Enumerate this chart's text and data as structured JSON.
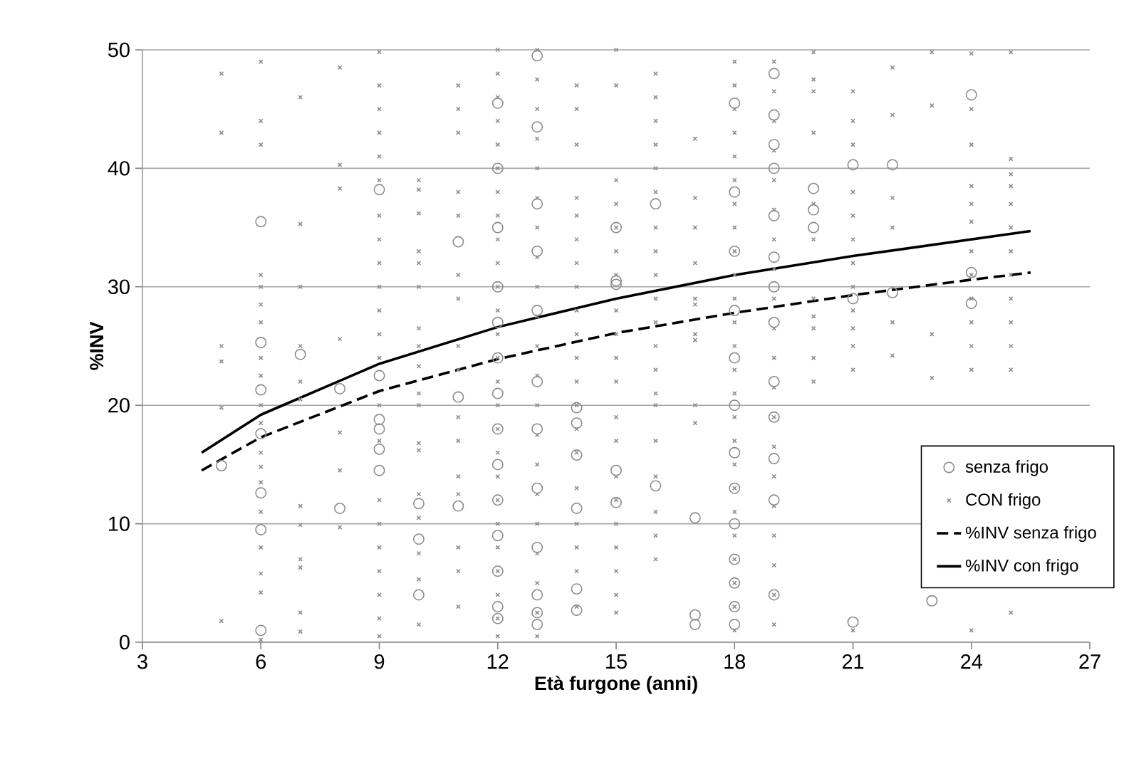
{
  "chart_data": {
    "type": "scatter",
    "xlabel": "Età furgone (anni)",
    "ylabel": "%INV",
    "xlim": [
      3,
      27
    ],
    "ylim": [
      0,
      50
    ],
    "xticks": [
      3,
      6,
      9,
      12,
      15,
      18,
      21,
      24,
      27
    ],
    "yticks": [
      0,
      10,
      20,
      30,
      40,
      50
    ],
    "grid": "y",
    "legend": "bottom right",
    "series": [
      {
        "name": "senza frigo",
        "marker": "circle",
        "color": "#8c8c8c",
        "x": [
          5,
          6,
          6,
          6,
          6,
          6,
          6,
          6,
          7,
          8,
          8,
          9,
          9,
          9,
          9,
          9,
          9,
          10,
          10,
          10,
          11,
          11,
          11,
          12,
          12,
          12,
          12,
          12,
          12,
          12,
          12,
          12,
          12,
          12,
          12,
          12,
          12,
          13,
          13,
          13,
          13,
          13,
          13,
          13,
          13,
          13,
          13,
          13,
          13,
          14,
          14,
          14,
          14,
          14,
          14,
          15,
          15,
          15,
          15,
          15,
          16,
          16,
          17,
          17,
          17,
          18,
          18,
          18,
          18,
          18,
          18,
          18,
          18,
          18,
          18,
          18,
          18,
          18,
          19,
          19,
          19,
          19,
          19,
          19,
          19,
          19,
          19,
          19,
          19,
          19,
          19,
          20,
          20,
          20,
          21,
          21,
          21,
          22,
          22,
          23,
          24,
          24,
          24
        ],
        "values": [
          14.9,
          35.5,
          25.3,
          21.3,
          17.6,
          12.6,
          9.5,
          1.0,
          24.3,
          21.4,
          11.3,
          38.2,
          22.5,
          18.8,
          18,
          16.3,
          14.5,
          11.7,
          8.7,
          4.0,
          33.8,
          20.7,
          11.5,
          45.5,
          40,
          35,
          30,
          27,
          24,
          21,
          18,
          15,
          12,
          9,
          6,
          3,
          2,
          49.5,
          43.5,
          37,
          33,
          28,
          22,
          18,
          13,
          8,
          4,
          2.5,
          1.5,
          19.8,
          18.5,
          15.8,
          11.3,
          4.5,
          2.7,
          35,
          30.5,
          30.2,
          14.5,
          11.8,
          37,
          13.2,
          10.5,
          2.3,
          1.5,
          45.5,
          38,
          33,
          28,
          24,
          20,
          16,
          13,
          10,
          7,
          5,
          3,
          1.5,
          48,
          44.5,
          42,
          40,
          36,
          32.5,
          30,
          27,
          22,
          19,
          15.5,
          12,
          4,
          38.3,
          36.5,
          35,
          40.3,
          29,
          1.7,
          40.3,
          29.5,
          3.5,
          46.2,
          31.2,
          28.6
        ]
      },
      {
        "name": "CON frigo",
        "marker": "cross",
        "color": "#8c8c8c",
        "x": [
          5,
          5,
          5,
          5,
          5,
          5,
          6,
          6,
          6,
          6,
          6,
          6,
          6,
          6,
          6,
          6,
          6,
          6,
          6,
          6,
          6,
          6,
          6,
          6,
          6,
          7,
          7,
          7,
          7,
          7,
          7,
          7,
          7,
          7,
          7,
          7,
          7,
          8,
          8,
          8,
          8,
          8,
          8,
          8,
          9,
          9,
          9,
          9,
          9,
          9,
          9,
          9,
          9,
          9,
          9,
          9,
          9,
          9,
          9,
          9,
          9,
          9,
          9,
          9,
          9,
          9,
          10,
          10,
          10,
          10,
          10,
          10,
          10,
          10,
          10,
          10,
          10,
          10,
          10,
          10,
          10,
          10,
          10,
          10,
          11,
          11,
          11,
          11,
          11,
          11,
          11,
          11,
          11,
          11,
          11,
          11,
          11,
          11,
          11,
          11,
          12,
          12,
          12,
          12,
          12,
          12,
          12,
          12,
          12,
          12,
          12,
          12,
          12,
          12,
          12,
          12,
          12,
          12,
          12,
          12,
          12,
          12,
          12,
          12,
          12,
          12,
          13,
          13,
          13,
          13,
          13,
          13,
          13,
          13,
          13,
          13,
          13,
          13,
          13,
          13,
          13,
          13,
          13,
          13,
          13,
          13,
          13,
          14,
          14,
          14,
          14,
          14,
          14,
          14,
          14,
          14,
          14,
          14,
          14,
          14,
          14,
          14,
          14,
          14,
          14,
          14,
          14,
          15,
          15,
          15,
          15,
          15,
          15,
          15,
          15,
          15,
          15,
          15,
          15,
          15,
          15,
          15,
          15,
          15,
          15,
          15,
          15,
          16,
          16,
          16,
          16,
          16,
          16,
          16,
          16,
          16,
          16,
          16,
          16,
          16,
          16,
          16,
          16,
          16,
          16,
          16,
          16,
          17,
          17,
          17,
          17,
          17,
          17,
          17,
          17,
          17,
          17,
          18,
          18,
          18,
          18,
          18,
          18,
          18,
          18,
          18,
          18,
          18,
          18,
          18,
          18,
          18,
          18,
          18,
          18,
          18,
          18,
          18,
          18,
          18,
          18,
          18,
          19,
          19,
          19,
          19,
          19,
          19,
          19,
          19,
          19,
          19,
          19,
          19,
          19,
          19,
          19,
          19,
          19,
          19,
          19,
          19,
          20,
          20,
          20,
          20,
          20,
          20,
          20,
          20,
          20,
          20,
          20,
          21,
          21,
          21,
          21,
          21,
          21,
          21,
          21,
          21,
          21,
          21,
          21,
          21,
          22,
          22,
          22,
          22,
          22,
          22,
          23,
          23,
          23,
          23,
          24,
          24,
          24,
          24,
          24,
          24,
          24,
          24,
          24,
          24,
          24,
          24,
          24,
          25,
          25,
          25,
          25,
          25,
          25,
          25,
          25,
          25,
          25,
          25,
          25,
          25
        ],
        "values": [
          48,
          43,
          25,
          23.7,
          19.8,
          1.8,
          49,
          44,
          42,
          31,
          30,
          28.5,
          27,
          24,
          22.5,
          20,
          18.5,
          16,
          14.8,
          13.5,
          11,
          8,
          5.8,
          4.2,
          0.2,
          46,
          35.3,
          30,
          25,
          22,
          20.5,
          11.5,
          9.9,
          7,
          6.3,
          2.5,
          0.9,
          48.5,
          40.3,
          38.3,
          25.6,
          17.7,
          14.5,
          9.7,
          49.8,
          47,
          45,
          43,
          41,
          39,
          36,
          34,
          32,
          30,
          28,
          26,
          24,
          20,
          17,
          12,
          10,
          8,
          6,
          4,
          2,
          0.5,
          39,
          38.2,
          36.2,
          33,
          32,
          30,
          26.5,
          25,
          23.3,
          21,
          20,
          16.8,
          16.2,
          12.5,
          10.5,
          7.5,
          5.3,
          1.5,
          47,
          45,
          43,
          38,
          36,
          31,
          29,
          25,
          23,
          19,
          17,
          14,
          12.5,
          8,
          6,
          3,
          50,
          48,
          46,
          44,
          42,
          40,
          38,
          36,
          34,
          32,
          30,
          28,
          26,
          24,
          22,
          20,
          18,
          16,
          14,
          12,
          10,
          8,
          6,
          4,
          2,
          0.5,
          50,
          47.5,
          45,
          42.5,
          40,
          37.5,
          35,
          32.5,
          30,
          27.5,
          25,
          22.5,
          20,
          17.5,
          15,
          12.5,
          10,
          7.5,
          5,
          2.5,
          0.5,
          47,
          45,
          42,
          37.5,
          36,
          34,
          32,
          30,
          28,
          26,
          24,
          22,
          20,
          18,
          16,
          13,
          10,
          8,
          6,
          3,
          50,
          47,
          39,
          37,
          35,
          33,
          31,
          28,
          26,
          24,
          22,
          19,
          17,
          14,
          12,
          10,
          8,
          6,
          4,
          2.5,
          48,
          46,
          44,
          42,
          40,
          38,
          35,
          33,
          31,
          29,
          27,
          25,
          23,
          21,
          20,
          17,
          14,
          11,
          9,
          7,
          42.5,
          37.5,
          35,
          32,
          29,
          28.5,
          26,
          25.5,
          20,
          18.5,
          49,
          47,
          45,
          43,
          41,
          39,
          37,
          35,
          33,
          31,
          29,
          27,
          25,
          23,
          21,
          19,
          17,
          15,
          13,
          11,
          9,
          7,
          5,
          3,
          1,
          49,
          46.5,
          44,
          41.5,
          39,
          36.5,
          34,
          31.5,
          29,
          26.5,
          24,
          21.5,
          19,
          16.5,
          14,
          11.5,
          9,
          6.5,
          4,
          1.5,
          49.8,
          47.5,
          46.5,
          43,
          37,
          34,
          29,
          27.5,
          26.5,
          24,
          22,
          46.5,
          44,
          42,
          38,
          36,
          34,
          32,
          30,
          28,
          26.5,
          25,
          23,
          1.0,
          48.5,
          44.5,
          37.5,
          35,
          27,
          24.2,
          49.8,
          45.3,
          26,
          22.3,
          49.7,
          45,
          42,
          38.5,
          37,
          35.5,
          33,
          31,
          29,
          27,
          25,
          23,
          1,
          49.8,
          40.8,
          39.5,
          38.5,
          37,
          35,
          33,
          31,
          29,
          27,
          25,
          23,
          2.5
        ]
      },
      {
        "name": "%INV senza frigo",
        "type": "line",
        "line_style": "dashed",
        "marker": "none",
        "color": "#000000",
        "x": [
          4.5,
          6,
          9,
          12,
          15,
          18,
          21,
          24,
          25.5
        ],
        "values": [
          14.5,
          17.3,
          21.2,
          23.9,
          26.1,
          27.8,
          29.3,
          30.6,
          31.2
        ]
      },
      {
        "name": "%INV con frigo",
        "type": "line",
        "line_style": "solid",
        "marker": "none",
        "color": "#000000",
        "x": [
          4.5,
          6,
          9,
          12,
          15,
          18,
          21,
          24,
          25.5
        ],
        "values": [
          16,
          19.2,
          23.5,
          26.6,
          29,
          31,
          32.6,
          34,
          34.7
        ]
      }
    ]
  }
}
